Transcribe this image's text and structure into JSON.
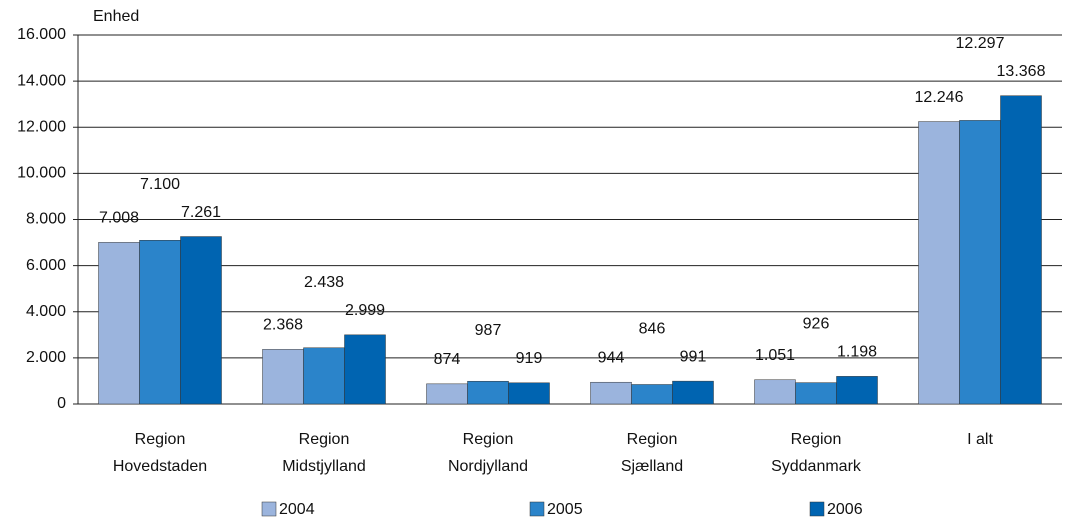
{
  "chart_data": {
    "type": "bar",
    "y_label": "Enhed",
    "categories": [
      [
        "Region",
        "Hovedstaden"
      ],
      [
        "Region",
        "Midstjylland"
      ],
      [
        "Region",
        "Nordjylland"
      ],
      [
        "Region",
        "Sjælland"
      ],
      [
        "Region",
        "Syddanmark"
      ],
      [
        "I alt"
      ]
    ],
    "series": [
      {
        "name": "2004",
        "color": "#9bb4dd",
        "values": [
          7008,
          2368,
          874,
          944,
          1051,
          12246
        ],
        "value_labels": [
          "7.008",
          "2.368",
          "874",
          "944",
          "1.051",
          "12.246"
        ]
      },
      {
        "name": "2005",
        "color": "#2b84ca",
        "values": [
          7100,
          2438,
          987,
          846,
          926,
          12297
        ],
        "value_labels": [
          "7.100",
          "2.438",
          "987",
          "846",
          "926",
          "12.297"
        ]
      },
      {
        "name": "2006",
        "color": "#0064b1",
        "values": [
          7261,
          2999,
          919,
          991,
          1198,
          13368
        ],
        "value_labels": [
          "7.261",
          "2.999",
          "919",
          "991",
          "1.198",
          "13.368"
        ]
      }
    ],
    "ylim": [
      0,
      16000
    ],
    "yticks": [
      0,
      {
        "value": 2000,
        "label": "2.000"
      },
      {
        "value": 4000,
        "label": "4.000"
      },
      {
        "value": 6000,
        "label": "6.000"
      },
      {
        "value": 8000,
        "label": "8.000"
      },
      {
        "value": 10000,
        "label": "10.000"
      },
      {
        "value": 12000,
        "label": "12.000"
      },
      {
        "value": 14000,
        "label": "14.000"
      },
      {
        "value": 16000,
        "label": "16.000"
      }
    ],
    "grid": true
  }
}
